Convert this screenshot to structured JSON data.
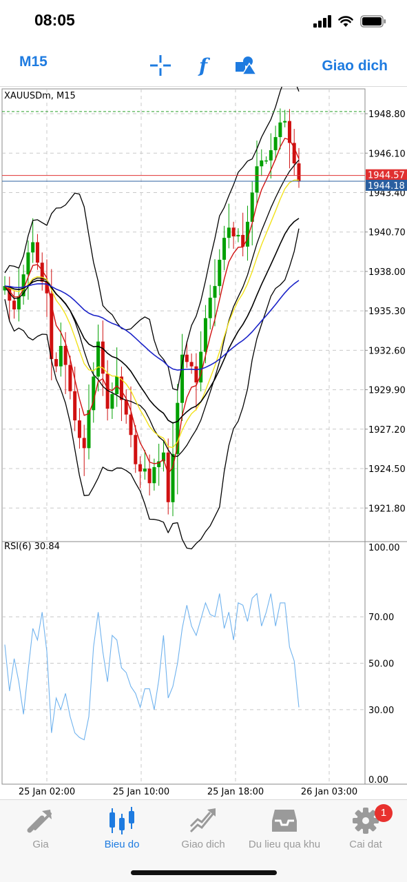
{
  "status": {
    "time": "08:05"
  },
  "toolbar": {
    "timeframe": "M15",
    "crosshair_icon": "crosshair-icon",
    "indicators_icon": "function-icon",
    "objects_icon": "shapes-icon",
    "trade_label": "Giao dich"
  },
  "chart": {
    "symbol_label": "XAUUSDm, M15",
    "rsi_label": "RSI(6) 30.84",
    "price_levels": [
      "1948.80",
      "1946.10",
      "1943.40",
      "1940.70",
      "1938.00",
      "1935.30",
      "1932.60",
      "1929.90",
      "1927.20",
      "1924.50",
      "1921.80"
    ],
    "ask_price": "1944.57",
    "bid_price": "1944.18",
    "rsi_levels": [
      "100.00",
      "70.00",
      "50.00",
      "30.00",
      "0.00"
    ],
    "time_labels": [
      "25 Jan 02:00",
      "25 Jan 10:00",
      "25 Jan 18:00",
      "26 Jan 03:00"
    ]
  },
  "chart_data": {
    "type": "candlestick",
    "symbol": "XAUUSDm",
    "timeframe": "M15",
    "price_range": [
      1919.5,
      1950.5
    ],
    "current_bid": 1944.18,
    "current_ask": 1944.57,
    "high_marker": 1948.95,
    "close_path": [
      1937.0,
      1936.0,
      1935.4,
      1936.3,
      1937.8,
      1939.3,
      1940.0,
      1938.6,
      1937.3,
      1936.5,
      1932.0,
      1931.5,
      1932.9,
      1931.6,
      1929.8,
      1927.8,
      1926.6,
      1925.9,
      1928.5,
      1930.8,
      1933.2,
      1931.0,
      1928.6,
      1929.6,
      1930.8,
      1929.2,
      1928.2,
      1926.8,
      1924.8,
      1924.3,
      1924.5,
      1923.5,
      1924.6,
      1925.0,
      1925.6,
      1922.2,
      1925.5,
      1929.0,
      1932.3,
      1931.8,
      1931.5,
      1930.4,
      1932.5,
      1934.8,
      1936.2,
      1937.0,
      1938.8,
      1940.3,
      1941.0,
      1940.4,
      1940.5,
      1939.7,
      1941.4,
      1943.4,
      1945.2,
      1945.6,
      1945.6,
      1946.3,
      1947.2,
      1948.2,
      1948.3,
      1946.8,
      1945.4,
      1944.18
    ],
    "rsi": {
      "period": 6,
      "current": 30.84,
      "levels": [
        70,
        50,
        30
      ],
      "range": [
        0,
        100
      ],
      "values": [
        58,
        38,
        52,
        42,
        28,
        47,
        65,
        60,
        72,
        55,
        20,
        35,
        30,
        37,
        27,
        20,
        18,
        17,
        27,
        57,
        72,
        55,
        42,
        62,
        60,
        48,
        46,
        40,
        37,
        31,
        39,
        39,
        30,
        43,
        62,
        35,
        40,
        50,
        65,
        75,
        66,
        62,
        69,
        76,
        71,
        70,
        80,
        65,
        72,
        60,
        76,
        75,
        68,
        78,
        80,
        66,
        72,
        80,
        66,
        76,
        76,
        57,
        51,
        31
      ]
    },
    "moving_averages": [
      {
        "color": "#d01010"
      },
      {
        "color": "#f2e21a"
      },
      {
        "color": "#000000"
      },
      {
        "color": "#1a22c8"
      }
    ]
  },
  "tabs": [
    {
      "label": "Gia",
      "icon": "quotes-icon"
    },
    {
      "label": "Bieu do",
      "icon": "chart-icon"
    },
    {
      "label": "Giao dich",
      "icon": "trade-icon"
    },
    {
      "label": "Du lieu qua khu",
      "icon": "history-icon"
    },
    {
      "label": "Cai dat",
      "icon": "settings-icon",
      "badge": "1"
    }
  ],
  "colors": {
    "accent": "#1e7be0",
    "bull": "#00a000",
    "bear": "#d01010",
    "ask_line": "#e03030",
    "bid_line": "#2a5fa0",
    "rsi_line": "#6fb2ee"
  }
}
